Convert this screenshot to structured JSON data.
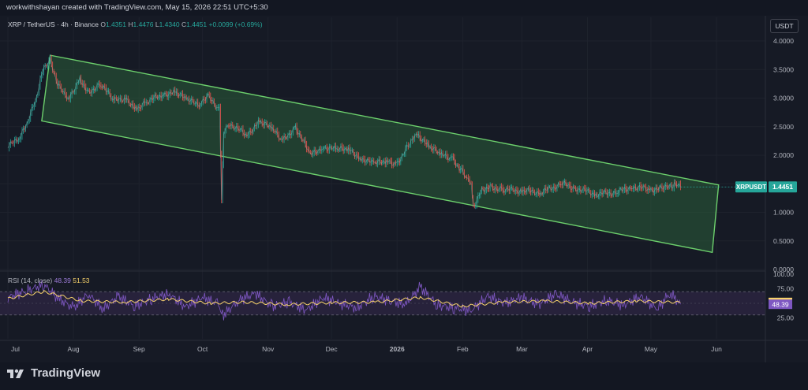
{
  "header": {
    "credit": "workwithshayan created with TradingView.com, May 15, 2026 22:51 UTC+5:30"
  },
  "symbol": {
    "title": "XRP / TetherUS · 4h · Binance",
    "o_label": "O",
    "o": "1.4351",
    "h_label": "H",
    "h": "1.4476",
    "l_label": "L",
    "l": "1.4340",
    "c_label": "C",
    "c": "1.4451",
    "change": "+0.0099 (+0.69%)"
  },
  "currency_button": "USDT",
  "price_tag": {
    "symbol": "XRPUSDT",
    "value": "1.4451"
  },
  "rsi": {
    "label": "RSI (14, close)",
    "value": "48.39",
    "ma_value": "51.53",
    "upper": 70,
    "lower": 30
  },
  "brand": {
    "name": "TradingView"
  },
  "colors": {
    "background": "#161a25",
    "candle_up": "#26a69a",
    "candle_down": "#ef5350",
    "channel_fill": "#2c5e3a",
    "channel_stroke": "#6ccf6c",
    "rsi_line": "#7e57c2",
    "rsi_ma": "#f7d26b",
    "rsi_band": "#2a2540"
  },
  "chart_data": [
    {
      "type": "line",
      "title": "XRP / TetherUS · 4h · Binance",
      "xlabel": "",
      "ylabel": "",
      "x_ticks": [
        "Jul",
        "Aug",
        "Sep",
        "Oct",
        "Nov",
        "Dec",
        "2026",
        "Feb",
        "Mar",
        "Apr",
        "May",
        "Jun"
      ],
      "y_ticks": [
        "0.0000",
        "0.5000",
        "1.0000",
        "1.5000",
        "2.0000",
        "2.5000",
        "3.0000",
        "3.5000",
        "4.0000"
      ],
      "ylim": [
        0,
        4.1
      ],
      "series": [
        {
          "name": "XRPUSDT",
          "x": [
            "2025-07-01",
            "2025-07-06",
            "2025-07-10",
            "2025-07-14",
            "2025-07-18",
            "2025-07-21",
            "2025-07-25",
            "2025-07-30",
            "2025-08-04",
            "2025-08-08",
            "2025-08-14",
            "2025-08-20",
            "2025-08-25",
            "2025-08-31",
            "2025-09-05",
            "2025-09-12",
            "2025-09-18",
            "2025-09-24",
            "2025-09-30",
            "2025-10-03",
            "2025-10-09",
            "2025-10-10",
            "2025-10-11",
            "2025-10-14",
            "2025-10-22",
            "2025-10-28",
            "2025-11-03",
            "2025-11-08",
            "2025-11-14",
            "2025-11-21",
            "2025-11-27",
            "2025-12-03",
            "2025-12-09",
            "2025-12-15",
            "2025-12-21",
            "2025-12-27",
            "2026-01-01",
            "2026-01-05",
            "2026-01-10",
            "2026-01-16",
            "2026-01-22",
            "2026-01-27",
            "2026-01-31",
            "2026-02-03",
            "2026-02-05",
            "2026-02-06",
            "2026-02-10",
            "2026-02-14",
            "2026-02-20",
            "2026-03-01",
            "2026-03-10",
            "2026-03-20",
            "2026-03-27",
            "2026-04-05",
            "2026-04-15",
            "2026-04-22",
            "2026-05-01",
            "2026-05-08",
            "2026-05-12",
            "2026-05-15"
          ],
          "y": [
            2.18,
            2.25,
            2.55,
            2.95,
            3.55,
            3.65,
            3.2,
            3.0,
            3.35,
            3.1,
            3.25,
            2.95,
            3.0,
            2.82,
            2.95,
            3.05,
            3.12,
            2.95,
            2.9,
            3.05,
            2.8,
            1.25,
            2.4,
            2.55,
            2.35,
            2.6,
            2.45,
            2.25,
            2.5,
            2.0,
            2.15,
            2.1,
            2.1,
            1.95,
            1.85,
            1.9,
            1.85,
            2.1,
            2.4,
            2.15,
            2.0,
            1.95,
            1.75,
            1.6,
            1.5,
            1.1,
            1.4,
            1.45,
            1.4,
            1.38,
            1.35,
            1.5,
            1.42,
            1.32,
            1.35,
            1.45,
            1.4,
            1.42,
            1.48,
            1.4451
          ]
        }
      ],
      "channel": {
        "upper": {
          "from": [
            "2025-07-21",
            3.75
          ],
          "to": [
            "2026-06-02",
            1.48
          ]
        },
        "lower": {
          "from": [
            "2025-07-17",
            2.6
          ],
          "to": [
            "2026-05-30",
            0.3
          ]
        }
      }
    },
    {
      "type": "line",
      "title": "RSI (14, close)",
      "x_ticks": [
        "Jul",
        "Aug",
        "Sep",
        "Oct",
        "Nov",
        "Dec",
        "2026",
        "Feb",
        "Mar",
        "Apr",
        "May",
        "Jun"
      ],
      "y_ticks": [
        "25.00",
        "75.00",
        "100.00"
      ],
      "ylim": [
        0,
        100
      ],
      "series": [
        {
          "name": "RSI",
          "x": [
            "2025-07-01",
            "2025-07-10",
            "2025-07-18",
            "2025-07-25",
            "2025-08-01",
            "2025-08-08",
            "2025-08-15",
            "2025-08-22",
            "2025-08-30",
            "2025-09-07",
            "2025-09-15",
            "2025-09-23",
            "2025-10-01",
            "2025-10-08",
            "2025-10-11",
            "2025-10-18",
            "2025-10-26",
            "2025-11-03",
            "2025-11-11",
            "2025-11-19",
            "2025-11-27",
            "2025-12-05",
            "2025-12-13",
            "2025-12-21",
            "2025-12-29",
            "2026-01-05",
            "2026-01-12",
            "2026-01-20",
            "2026-01-28",
            "2026-02-05",
            "2026-02-13",
            "2026-02-21",
            "2026-03-01",
            "2026-03-09",
            "2026-03-17",
            "2026-03-25",
            "2026-04-02",
            "2026-04-10",
            "2026-04-18",
            "2026-04-26",
            "2026-05-04",
            "2026-05-10",
            "2026-05-15"
          ],
          "y": [
            60,
            72,
            82,
            58,
            42,
            66,
            40,
            62,
            45,
            58,
            66,
            44,
            60,
            50,
            30,
            55,
            67,
            45,
            52,
            38,
            60,
            50,
            42,
            62,
            54,
            48,
            78,
            47,
            42,
            38,
            62,
            50,
            60,
            48,
            66,
            52,
            45,
            55,
            47,
            62,
            40,
            68,
            48.39
          ]
        },
        {
          "name": "RSI-based MA",
          "x": [
            "2025-07-01",
            "2025-07-18",
            "2025-08-05",
            "2025-08-25",
            "2025-09-15",
            "2025-10-05",
            "2025-10-20",
            "2025-11-10",
            "2025-12-01",
            "2025-12-22",
            "2026-01-12",
            "2026-02-01",
            "2026-02-20",
            "2026-03-12",
            "2026-04-02",
            "2026-04-24",
            "2026-05-15"
          ],
          "y": [
            58,
            70,
            54,
            52,
            57,
            50,
            52,
            48,
            51,
            52,
            60,
            45,
            52,
            54,
            50,
            54,
            51.53
          ]
        }
      ]
    }
  ]
}
